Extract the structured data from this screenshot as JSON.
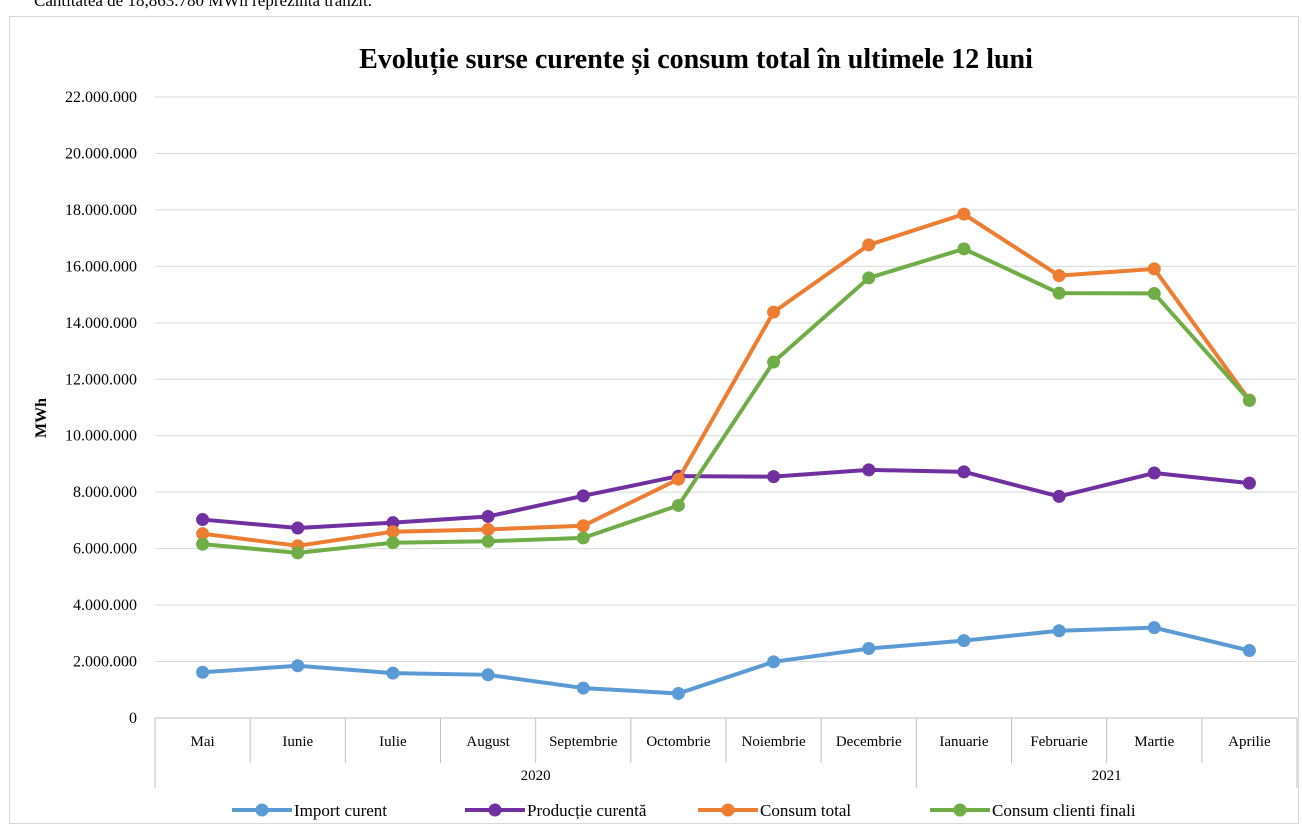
{
  "note": "Cantitatea de 18,863.780 MWh reprezintă tranzit.",
  "chart_data": {
    "type": "line",
    "title": "Evoluție surse curente și consum total în ultimele 12 luni",
    "ylabel": "MWh",
    "xlabel": "",
    "ylim": [
      0,
      22000000
    ],
    "yticks": [
      "0",
      "2.000.000",
      "4.000.000",
      "6.000.000",
      "8.000.000",
      "10.000.000",
      "12.000.000",
      "14.000.000",
      "16.000.000",
      "18.000.000",
      "20.000.000",
      "22.000.000"
    ],
    "categories": [
      "Mai",
      "Iunie",
      "Iulie",
      "August",
      "Septembrie",
      "Octombrie",
      "Noiembrie",
      "Decembrie",
      "Ianuarie",
      "Februarie",
      "Martie",
      "Aprilie"
    ],
    "years": [
      {
        "label": "2020",
        "span": 8
      },
      {
        "label": "2021",
        "span": 4
      }
    ],
    "grid": true,
    "legend_position": "bottom",
    "series": [
      {
        "name": "Import curent",
        "color": "#5B9BD5",
        "values": [
          1620000,
          1850000,
          1590000,
          1530000,
          1060000,
          870000,
          1990000,
          2460000,
          2740000,
          3090000,
          3200000,
          2390000
        ]
      },
      {
        "name": "Producție curentă",
        "color": "#7030A0",
        "values": [
          7030000,
          6730000,
          6920000,
          7140000,
          7870000,
          8570000,
          8550000,
          8790000,
          8720000,
          7850000,
          8680000,
          8320000
        ]
      },
      {
        "name": "Consum total",
        "color": "#ED7D31",
        "values": [
          6530000,
          6100000,
          6600000,
          6680000,
          6810000,
          8460000,
          14380000,
          16760000,
          17850000,
          15670000,
          15910000,
          11260000
        ]
      },
      {
        "name": "Consum clienti finali",
        "color": "#70AD47",
        "values": [
          6160000,
          5850000,
          6210000,
          6260000,
          6380000,
          7530000,
          12610000,
          15590000,
          16620000,
          15050000,
          15040000,
          11250000
        ]
      }
    ]
  }
}
